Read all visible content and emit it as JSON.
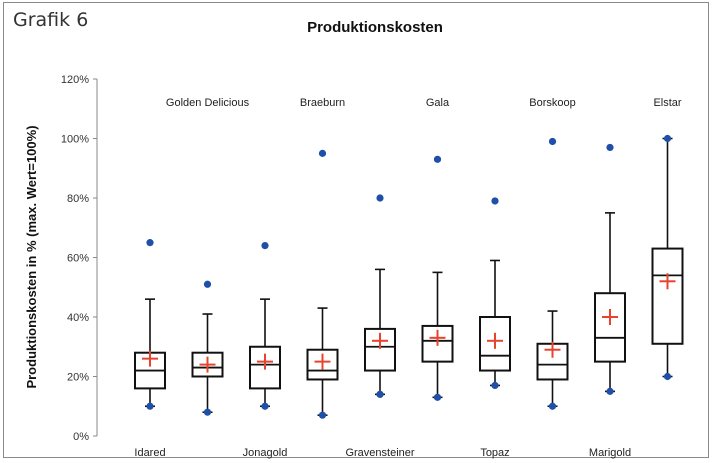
{
  "figure_label": "Grafik 6",
  "chart_data": {
    "type": "box",
    "title": "Produktionskosten",
    "xlabel": "",
    "ylabel": "Produktionskosten in % (max. Wert=100%)",
    "ylim": [
      0,
      120
    ],
    "yticks": [
      0,
      20,
      40,
      60,
      80,
      100,
      120
    ],
    "ytick_labels": [
      "0%",
      "20%",
      "40%",
      "60%",
      "80%",
      "100%",
      "120%"
    ],
    "grid": false,
    "legend": "none",
    "colors": {
      "box": "#111111",
      "mean": "#e8432f",
      "outlier": "#1f4fa8",
      "axis": "#888888"
    },
    "categories": [
      "Idared",
      "Golden Delicious",
      "Jonagold",
      "Braeburn",
      "Gravensteiner",
      "Gala",
      "Topaz",
      "Borskoop",
      "Marigold",
      "Elstar"
    ],
    "label_position": [
      "bottom",
      "top",
      "bottom",
      "top",
      "bottom",
      "top",
      "bottom",
      "top",
      "bottom",
      "top"
    ],
    "boxes": [
      {
        "name": "Idared",
        "whisker_low": 10,
        "q1": 16,
        "median": 22,
        "q3": 28,
        "whisker_high": 46,
        "mean": 26,
        "outliers": [
          10,
          65
        ]
      },
      {
        "name": "Golden Delicious",
        "whisker_low": 8,
        "q1": 20,
        "median": 23,
        "q3": 28,
        "whisker_high": 41,
        "mean": 24,
        "outliers": [
          8,
          51
        ]
      },
      {
        "name": "Jonagold",
        "whisker_low": 10,
        "q1": 16,
        "median": 24,
        "q3": 30,
        "whisker_high": 46,
        "mean": 25,
        "outliers": [
          10,
          64
        ]
      },
      {
        "name": "Braeburn",
        "whisker_low": 7,
        "q1": 19,
        "median": 22,
        "q3": 29,
        "whisker_high": 43,
        "mean": 25,
        "outliers": [
          7,
          95
        ]
      },
      {
        "name": "Gravensteiner",
        "whisker_low": 14,
        "q1": 22,
        "median": 30,
        "q3": 36,
        "whisker_high": 56,
        "mean": 32,
        "outliers": [
          14,
          80
        ]
      },
      {
        "name": "Gala",
        "whisker_low": 13,
        "q1": 25,
        "median": 32,
        "q3": 37,
        "whisker_high": 55,
        "mean": 33,
        "outliers": [
          13,
          93
        ]
      },
      {
        "name": "Topaz",
        "whisker_low": 17,
        "q1": 22,
        "median": 27,
        "q3": 40,
        "whisker_high": 59,
        "mean": 32,
        "outliers": [
          17,
          79
        ]
      },
      {
        "name": "Borskoop",
        "whisker_low": 10,
        "q1": 19,
        "median": 24,
        "q3": 31,
        "whisker_high": 42,
        "mean": 29,
        "outliers": [
          10,
          99
        ]
      },
      {
        "name": "Marigold",
        "whisker_low": 15,
        "q1": 25,
        "median": 33,
        "q3": 48,
        "whisker_high": 75,
        "mean": 40,
        "outliers": [
          15,
          97
        ]
      },
      {
        "name": "Elstar",
        "whisker_low": 20,
        "q1": 31,
        "median": 54,
        "q3": 63,
        "whisker_high": 100,
        "mean": 52,
        "outliers": [
          20,
          100
        ]
      }
    ]
  }
}
